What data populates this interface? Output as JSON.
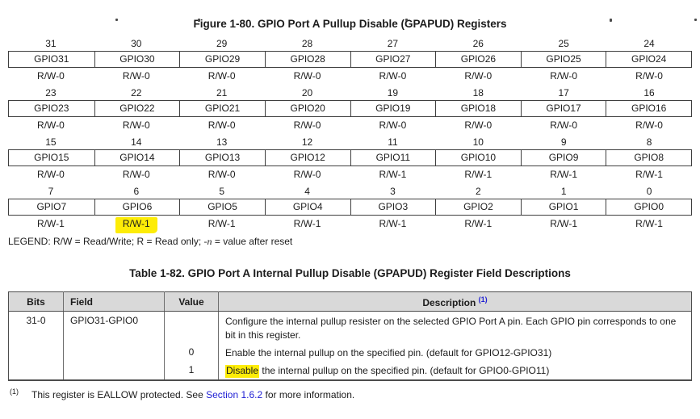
{
  "colors": {
    "highlight": "#fdec07",
    "link": "#1f1fd4",
    "header_bg": "#d9d9d9"
  },
  "figure": {
    "title": "Figure 1-80. GPIO Port A Pullup Disable (GPAPUD) Registers",
    "groups": [
      {
        "bits": [
          "31",
          "30",
          "29",
          "28",
          "27",
          "26",
          "25",
          "24"
        ],
        "fields": [
          "GPIO31",
          "GPIO30",
          "GPIO29",
          "GPIO28",
          "GPIO27",
          "GPIO26",
          "GPIO25",
          "GPIO24"
        ],
        "access": [
          "R/W-0",
          "R/W-0",
          "R/W-0",
          "R/W-0",
          "R/W-0",
          "R/W-0",
          "R/W-0",
          "R/W-0"
        ]
      },
      {
        "bits": [
          "23",
          "22",
          "21",
          "20",
          "19",
          "18",
          "17",
          "16"
        ],
        "fields": [
          "GPIO23",
          "GPIO22",
          "GPIO21",
          "GPIO20",
          "GPIO19",
          "GPIO18",
          "GPIO17",
          "GPIO16"
        ],
        "access": [
          "R/W-0",
          "R/W-0",
          "R/W-0",
          "R/W-0",
          "R/W-0",
          "R/W-0",
          "R/W-0",
          "R/W-0"
        ]
      },
      {
        "bits": [
          "15",
          "14",
          "13",
          "12",
          "11",
          "10",
          "9",
          "8"
        ],
        "fields": [
          "GPIO15",
          "GPIO14",
          "GPIO13",
          "GPIO12",
          "GPIO11",
          "GPIO10",
          "GPIO9",
          "GPIO8"
        ],
        "access": [
          "R/W-0",
          "R/W-0",
          "R/W-0",
          "R/W-0",
          "R/W-1",
          "R/W-1",
          "R/W-1",
          "R/W-1"
        ]
      },
      {
        "bits": [
          "7",
          "6",
          "5",
          "4",
          "3",
          "2",
          "1",
          "0"
        ],
        "fields": [
          "GPIO7",
          "GPIO6",
          "GPIO5",
          "GPIO4",
          "GPIO3",
          "GPIO2",
          "GPIO1",
          "GPIO0"
        ],
        "access": [
          "R/W-1",
          "R/W-1",
          "R/W-1",
          "R/W-1",
          "R/W-1",
          "R/W-1",
          "R/W-1",
          "R/W-1"
        ]
      }
    ],
    "highlight": {
      "group": 3,
      "col": 1
    },
    "legend_prefix": "LEGEND: R/W = Read/Write; R = Read only; ",
    "legend_italic": "-n",
    "legend_suffix": " = value after reset"
  },
  "table": {
    "title": "Table 1-82. GPIO Port A Internal Pullup Disable (GPAPUD) Register Field Descriptions",
    "headers": {
      "bits": "Bits",
      "field": "Field",
      "value": "Value",
      "description": "Description",
      "description_sup": "(1)"
    },
    "bits": "31-0",
    "field": "GPIO31-GPIO0",
    "description": "Configure the internal pullup resister on the selected GPIO Port A pin. Each GPIO pin corresponds to one bit in this register.",
    "values": [
      {
        "value": "0",
        "desc": "Enable the internal pullup on the specified pin. (default for GPIO12-GPIO31)"
      },
      {
        "value": "1",
        "desc_highlight": "Disable",
        "desc_rest": " the internal pullup on the specified pin. (default for GPIO0-GPIO11)"
      }
    ]
  },
  "footnote": {
    "sup": "(1)",
    "text_before": "This register is EALLOW protected. See ",
    "link": "Section 1.6.2",
    "text_after": " for more information."
  }
}
